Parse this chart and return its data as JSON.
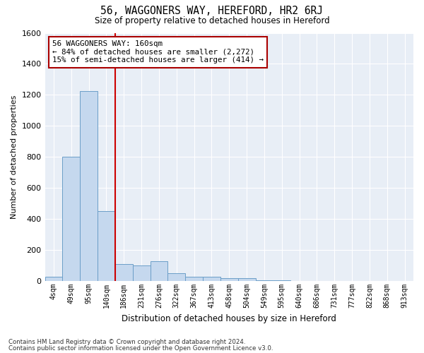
{
  "title": "56, WAGGONERS WAY, HEREFORD, HR2 6RJ",
  "subtitle": "Size of property relative to detached houses in Hereford",
  "xlabel": "Distribution of detached houses by size in Hereford",
  "ylabel": "Number of detached properties",
  "footnote1": "Contains HM Land Registry data © Crown copyright and database right 2024.",
  "footnote2": "Contains public sector information licensed under the Open Government Licence v3.0.",
  "bar_labels": [
    "4sqm",
    "49sqm",
    "95sqm",
    "140sqm",
    "186sqm",
    "231sqm",
    "276sqm",
    "322sqm",
    "367sqm",
    "413sqm",
    "458sqm",
    "504sqm",
    "549sqm",
    "595sqm",
    "640sqm",
    "686sqm",
    "731sqm",
    "777sqm",
    "822sqm",
    "868sqm",
    "913sqm"
  ],
  "bar_values": [
    30,
    800,
    1225,
    450,
    110,
    100,
    130,
    50,
    30,
    30,
    20,
    20,
    5,
    3,
    2,
    2,
    1,
    1,
    0,
    0,
    0
  ],
  "bar_color": "#c5d8ee",
  "bar_edge_color": "#6b9ec8",
  "background_color": "#e8eef6",
  "grid_color": "#ffffff",
  "red_line_x": 3.5,
  "annotation_text": "56 WAGGONERS WAY: 160sqm\n← 84% of detached houses are smaller (2,272)\n15% of semi-detached houses are larger (414) →",
  "annotation_box_color": "#ffffff",
  "annotation_box_edge": "#aa0000",
  "ylim": [
    0,
    1600
  ],
  "yticks": [
    0,
    200,
    400,
    600,
    800,
    1000,
    1200,
    1400,
    1600
  ]
}
